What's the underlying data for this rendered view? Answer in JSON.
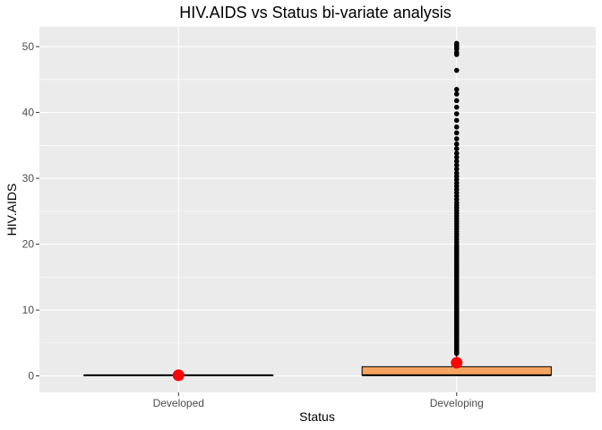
{
  "chart_data": {
    "type": "boxplot",
    "title": "HIV.AIDS vs Status bi-variate analysis",
    "xlabel": "Status",
    "ylabel": "HIV.AIDS",
    "categories": [
      "Developed",
      "Developing"
    ],
    "ylim": [
      -2.5,
      53
    ],
    "yticks": [
      0,
      10,
      20,
      30,
      40,
      50
    ],
    "yticklabels": [
      "0",
      "10",
      "20",
      "30",
      "40",
      "50"
    ],
    "grid": true,
    "legend": "none",
    "boxes": [
      {
        "category": "Developed",
        "q1": 0.1,
        "median": 0.1,
        "q3": 0.1,
        "whisker_low": 0.1,
        "whisker_high": 0.1,
        "mean": 0.1,
        "fill": "#F4A460",
        "outliers": []
      },
      {
        "category": "Developing",
        "q1": 0.1,
        "median": 0.1,
        "q3": 1.4,
        "whisker_low": 0.1,
        "whisker_high": 3.3,
        "mean": 2.0,
        "fill": "#F4A460",
        "outliers": [
          3.4,
          3.6,
          3.8,
          4.0,
          4.2,
          4.4,
          4.6,
          4.8,
          5.0,
          5.2,
          5.4,
          5.6,
          5.8,
          6.0,
          6.2,
          6.4,
          6.6,
          6.8,
          7.0,
          7.2,
          7.4,
          7.6,
          7.8,
          8.0,
          8.2,
          8.4,
          8.6,
          8.8,
          9.0,
          9.2,
          9.4,
          9.6,
          9.8,
          10.0,
          10.3,
          10.6,
          10.9,
          11.2,
          11.5,
          11.8,
          12.1,
          12.4,
          12.7,
          13.0,
          13.3,
          13.6,
          13.9,
          14.2,
          14.5,
          14.8,
          15.1,
          15.4,
          15.7,
          16.0,
          16.3,
          16.6,
          16.9,
          17.2,
          17.5,
          17.8,
          18.1,
          18.4,
          18.7,
          19.0,
          19.3,
          19.6,
          19.9,
          20.3,
          20.7,
          21.1,
          21.5,
          21.9,
          22.3,
          22.7,
          23.1,
          23.5,
          23.9,
          24.3,
          24.7,
          25.1,
          25.5,
          25.9,
          26.3,
          26.8,
          27.3,
          27.8,
          28.3,
          28.8,
          29.3,
          29.8,
          30.3,
          30.8,
          31.4,
          32.0,
          32.6,
          33.2,
          33.8,
          34.5,
          35.2,
          36.0,
          36.9,
          37.8,
          38.8,
          39.8,
          40.8,
          41.8,
          42.8,
          43.5,
          46.4,
          48.8,
          49.1,
          49.6,
          49.9,
          50.2,
          50.5
        ]
      }
    ],
    "colors": {
      "panel_background": "#EBEBEB",
      "grid": "#FFFFFF",
      "box_fill": "#F4A460",
      "box_line": "#000000",
      "outlier": "#000000",
      "mean_marker": "#FF0000"
    }
  }
}
